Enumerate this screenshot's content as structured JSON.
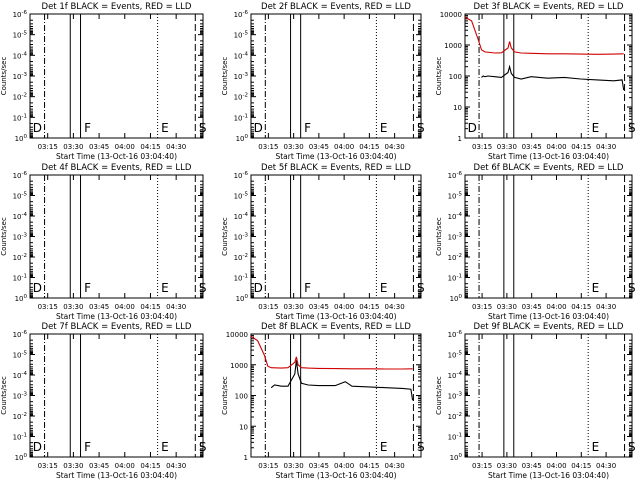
{
  "colors": {
    "events": "#000000",
    "lld": "#d00000",
    "axis": "#000000",
    "background": "#ffffff"
  },
  "chart_data": [
    {
      "type": "line",
      "title": "Det 1f BLACK = Events, RED = LLD",
      "xlabel": "Start Time (13-Oct-16 03:04:40)",
      "ylabel": "Counts/sec",
      "xticks": [
        "03:15",
        "03:30",
        "03:45",
        "04:00",
        "04:15",
        "04:30"
      ],
      "yticks": [
        "10^0",
        "10^-1",
        "10^-2",
        "10^-3",
        "10^-4",
        "10^-5",
        "10^-6"
      ],
      "has_data": false,
      "markers": [
        {
          "label": "D",
          "minute": 1
        },
        {
          "label": "F",
          "minute": 31
        },
        {
          "label": "E",
          "minute": 76
        },
        {
          "label": "S",
          "minute": 98
        }
      ]
    },
    {
      "type": "line",
      "title": "Det 2f BLACK = Events, RED = LLD",
      "xlabel": "Start Time (13-Oct-16 03:04:40)",
      "ylabel": "Counts/sec",
      "xticks": [
        "03:15",
        "03:30",
        "03:45",
        "04:00",
        "04:15",
        "04:30"
      ],
      "yticks": [
        "10^0",
        "10^-1",
        "10^-2",
        "10^-3",
        "10^-4",
        "10^-5",
        "10^-6"
      ],
      "has_data": false,
      "markers": [
        {
          "label": "D",
          "minute": 1
        },
        {
          "label": "F",
          "minute": 31
        },
        {
          "label": "E",
          "minute": 76
        },
        {
          "label": "S",
          "minute": 98
        }
      ]
    },
    {
      "type": "line",
      "title": "Det 3f BLACK = Events, RED = LLD",
      "xlabel": "Start Time (13-Oct-16 03:04:40)",
      "ylabel": "Counts/sec",
      "xticks": [
        "03:15",
        "03:30",
        "03:45",
        "04:00",
        "04:15",
        "04:30"
      ],
      "yticks": [
        "10000",
        "1000",
        "100",
        "10",
        "1"
      ],
      "has_data": true,
      "markers": [
        {
          "label": "D",
          "minute": 1
        },
        {
          "label": "E",
          "minute": 76
        },
        {
          "label": "S",
          "minute": 98
        }
      ],
      "series": [
        {
          "name": "Events",
          "color": "#000000",
          "x": [
            10,
            11,
            12,
            14,
            18,
            22,
            26,
            27,
            28,
            30,
            34,
            40,
            50,
            60,
            70,
            80,
            90,
            95,
            96
          ],
          "y": [
            90,
            100,
            95,
            100,
            95,
            90,
            130,
            200,
            120,
            90,
            80,
            95,
            85,
            90,
            80,
            75,
            70,
            75,
            35
          ]
        },
        {
          "name": "LLD",
          "color": "#d00000",
          "x": [
            0,
            4,
            8,
            10,
            12,
            18,
            22,
            26,
            27,
            28,
            30,
            34,
            40,
            50,
            60,
            70,
            80,
            90,
            96
          ],
          "y": [
            8000,
            6000,
            1500,
            700,
            600,
            550,
            560,
            800,
            1300,
            800,
            600,
            550,
            540,
            520,
            520,
            510,
            500,
            510,
            520
          ]
        }
      ]
    },
    {
      "type": "line",
      "title": "Det 4f BLACK = Events, RED = LLD",
      "xlabel": "Start Time (13-Oct-16 03:04:40)",
      "ylabel": "Counts/sec",
      "xticks": [
        "03:15",
        "03:30",
        "03:45",
        "04:00",
        "04:15",
        "04:30"
      ],
      "yticks": [
        "10^0",
        "10^-1",
        "10^-2",
        "10^-3",
        "10^-4",
        "10^-5",
        "10^-6"
      ],
      "has_data": false,
      "markers": [
        {
          "label": "D",
          "minute": 1
        },
        {
          "label": "F",
          "minute": 31
        },
        {
          "label": "E",
          "minute": 76
        },
        {
          "label": "S",
          "minute": 98
        }
      ]
    },
    {
      "type": "line",
      "title": "Det 5f BLACK = Events, RED = LLD",
      "xlabel": "Start Time (13-Oct-16 03:04:40)",
      "ylabel": "Counts/sec",
      "xticks": [
        "03:15",
        "03:30",
        "03:45",
        "04:00",
        "04:15",
        "04:30"
      ],
      "yticks": [
        "10^0",
        "10^-1",
        "10^-2",
        "10^-3",
        "10^-4",
        "10^-5",
        "10^-6"
      ],
      "has_data": false,
      "markers": [
        {
          "label": "D",
          "minute": 1
        },
        {
          "label": "F",
          "minute": 31
        },
        {
          "label": "E",
          "minute": 76
        },
        {
          "label": "S",
          "minute": 98
        }
      ]
    },
    {
      "type": "line",
      "title": "Det 6f BLACK = Events, RED = LLD",
      "xlabel": "Start Time (13-Oct-16 03:04:40)",
      "ylabel": "Counts/sec",
      "xticks": [
        "03:15",
        "03:30",
        "03:45",
        "04:00",
        "04:15",
        "04:30"
      ],
      "yticks": [
        "10^0",
        "10^-1",
        "10^-2",
        "10^-3",
        "10^-4",
        "10^-5",
        "10^-6"
      ],
      "has_data": false,
      "markers": [
        {
          "label": "E",
          "minute": 76
        },
        {
          "label": "S",
          "minute": 98
        }
      ]
    },
    {
      "type": "line",
      "title": "Det 7f BLACK = Events, RED = LLD",
      "xlabel": "Start Time (13-Oct-16 03:04:40)",
      "ylabel": "Counts/sec",
      "xticks": [
        "03:15",
        "03:30",
        "03:45",
        "04:00",
        "04:15",
        "04:30"
      ],
      "yticks": [
        "10^0",
        "10^-1",
        "10^-2",
        "10^-3",
        "10^-4",
        "10^-5",
        "10^-6"
      ],
      "has_data": false,
      "markers": [
        {
          "label": "D",
          "minute": 1
        },
        {
          "label": "F",
          "minute": 31
        },
        {
          "label": "E",
          "minute": 76
        },
        {
          "label": "S",
          "minute": 98
        }
      ]
    },
    {
      "type": "line",
      "title": "Det 8f BLACK = Events, RED = LLD",
      "xlabel": "Start Time (13-Oct-16 03:04:40)",
      "ylabel": "Counts/sec",
      "xticks": [
        "03:15",
        "03:30",
        "03:45",
        "04:00",
        "04:15",
        "04:30"
      ],
      "yticks": [
        "10000",
        "1000",
        "100",
        "10",
        "1"
      ],
      "has_data": true,
      "markers": [
        {
          "label": "E",
          "minute": 76
        },
        {
          "label": "S",
          "minute": 98
        }
      ],
      "series": [
        {
          "name": "Events",
          "color": "#000000",
          "x": [
            12,
            14,
            18,
            22,
            26,
            27,
            28,
            30,
            34,
            40,
            50,
            56,
            60,
            70,
            80,
            90,
            95,
            96
          ],
          "y": [
            180,
            220,
            200,
            200,
            500,
            1400,
            500,
            250,
            220,
            210,
            210,
            280,
            200,
            190,
            180,
            170,
            160,
            70
          ]
        },
        {
          "name": "LLD",
          "color": "#d00000",
          "x": [
            0,
            4,
            8,
            10,
            12,
            18,
            22,
            26,
            27,
            28,
            30,
            34,
            40,
            50,
            60,
            70,
            80,
            90,
            96
          ],
          "y": [
            8500,
            6000,
            2000,
            900,
            800,
            780,
            800,
            1200,
            1800,
            1000,
            800,
            780,
            760,
            750,
            740,
            740,
            730,
            730,
            740
          ]
        }
      ]
    },
    {
      "type": "line",
      "title": "Det 9f BLACK = Events, RED = LLD",
      "xlabel": "Start Time (13-Oct-16 03:04:40)",
      "ylabel": "Counts/sec",
      "xticks": [
        "03:15",
        "03:30",
        "03:45",
        "04:00",
        "04:15",
        "04:30"
      ],
      "yticks": [
        "10^0",
        "10^-1",
        "10^-2",
        "10^-3",
        "10^-4",
        "10^-5",
        "10^-6"
      ],
      "has_data": false,
      "markers": [
        {
          "label": "E",
          "minute": 76
        },
        {
          "label": "S",
          "minute": 98
        }
      ]
    }
  ]
}
